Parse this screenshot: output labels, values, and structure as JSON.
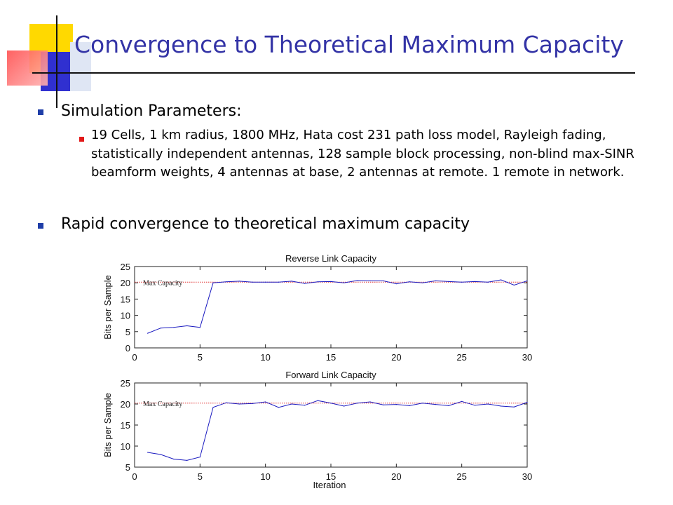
{
  "slide": {
    "title": "Convergence to Theoretical Maximum Capacity",
    "bullets": [
      {
        "text": "Simulation Parameters:"
      },
      {
        "text": "19 Cells, 1 km radius, 1800 MHz, Hata cost 231 path loss model, Rayleigh fading, statistically independent antennas,  128 sample block processing, non-blind max-SINR beamform weights, 4 antennas at base, 2 antennas at remote. 1 remote in network."
      },
      {
        "text": "Rapid convergence to theoretical maximum capacity"
      }
    ]
  },
  "colors": {
    "title": "#3333a6",
    "bullet_primary": "#1f3ea8",
    "bullet_secondary": "#e21818",
    "series_line": "#1a1ac0",
    "max_line": "#e03030"
  },
  "chart_data": [
    {
      "type": "line",
      "title": "Reverse Link Capacity",
      "xlabel": "",
      "ylabel": "Bits per Sample",
      "xlim": [
        0,
        30
      ],
      "ylim": [
        0,
        25
      ],
      "xticks": [
        0,
        5,
        10,
        15,
        20,
        25,
        30
      ],
      "yticks": [
        0,
        5,
        10,
        15,
        20,
        25
      ],
      "annotation": "Max Capacity",
      "max_capacity": 20.2,
      "x": [
        1,
        2,
        3,
        4,
        5,
        6,
        7,
        8,
        9,
        10,
        11,
        12,
        13,
        14,
        15,
        16,
        17,
        18,
        19,
        20,
        21,
        22,
        23,
        24,
        25,
        26,
        27,
        28,
        29,
        30
      ],
      "values": [
        4.5,
        6.1,
        6.3,
        6.8,
        6.3,
        20.0,
        20.3,
        20.5,
        20.2,
        20.2,
        20.2,
        20.5,
        19.8,
        20.3,
        20.4,
        20.0,
        20.7,
        20.6,
        20.6,
        19.7,
        20.3,
        20.0,
        20.6,
        20.4,
        20.2,
        20.4,
        20.2,
        20.9,
        19.3,
        20.6
      ]
    },
    {
      "type": "line",
      "title": "Forward Link Capacity",
      "xlabel": "Iteration",
      "ylabel": "Bits per Sample",
      "xlim": [
        0,
        30
      ],
      "ylim": [
        5,
        25
      ],
      "xticks": [
        0,
        5,
        10,
        15,
        20,
        25,
        30
      ],
      "yticks": [
        5,
        10,
        15,
        20,
        25
      ],
      "annotation": "Max Capacity",
      "max_capacity": 20.2,
      "x": [
        1,
        2,
        3,
        4,
        5,
        6,
        7,
        8,
        9,
        10,
        11,
        12,
        13,
        14,
        15,
        16,
        17,
        18,
        19,
        20,
        21,
        22,
        23,
        24,
        25,
        26,
        27,
        28,
        29,
        30
      ],
      "values": [
        8.5,
        8.0,
        6.9,
        6.6,
        7.4,
        19.2,
        20.3,
        20.0,
        20.1,
        20.5,
        19.2,
        20.0,
        19.7,
        20.8,
        20.2,
        19.5,
        20.2,
        20.5,
        19.8,
        19.9,
        19.6,
        20.2,
        19.9,
        19.6,
        20.6,
        19.7,
        20.0,
        19.5,
        19.3,
        20.4
      ]
    }
  ]
}
